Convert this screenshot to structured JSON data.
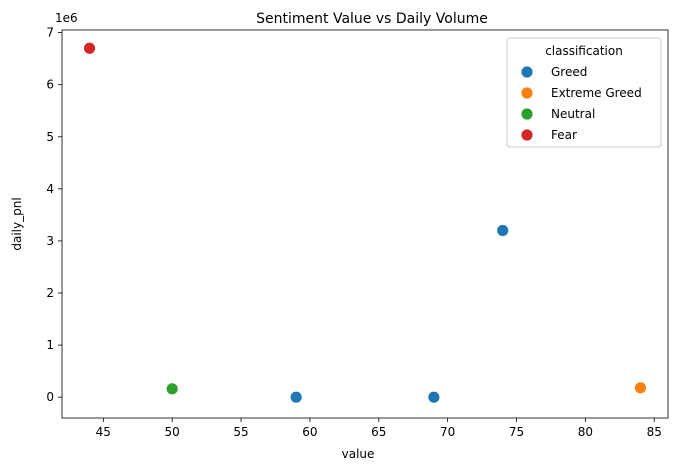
{
  "chart_data": {
    "type": "scatter",
    "title": "Sentiment Value vs Daily Volume",
    "xlabel": "value",
    "ylabel": "daily_pnl",
    "y_offset_label": "1e6",
    "xlim": [
      42,
      86
    ],
    "ylim": [
      -0.4,
      7.05
    ],
    "xticks": [
      45,
      50,
      55,
      60,
      65,
      70,
      75,
      80,
      85
    ],
    "yticks": [
      0,
      1,
      2,
      3,
      4,
      5,
      6,
      7
    ],
    "grid": false,
    "legend": {
      "title": "classification",
      "placement": "top-right",
      "entries": [
        {
          "name": "Greed",
          "color": "#1f77b4"
        },
        {
          "name": "Extreme Greed",
          "color": "#ff7f0e"
        },
        {
          "name": "Neutral",
          "color": "#2ca02c"
        },
        {
          "name": "Fear",
          "color": "#d62728"
        }
      ]
    },
    "series": [
      {
        "name": "Greed",
        "color": "#1f77b4",
        "points": [
          {
            "x": 59,
            "y": 0.0
          },
          {
            "x": 69,
            "y": 0.0
          },
          {
            "x": 74,
            "y": 3.2
          }
        ]
      },
      {
        "name": "Extreme Greed",
        "color": "#ff7f0e",
        "points": [
          {
            "x": 84,
            "y": 0.18
          }
        ]
      },
      {
        "name": "Neutral",
        "color": "#2ca02c",
        "points": [
          {
            "x": 50,
            "y": 0.16
          }
        ]
      },
      {
        "name": "Fear",
        "color": "#d62728",
        "points": [
          {
            "x": 44,
            "y": 6.7
          }
        ]
      }
    ]
  }
}
